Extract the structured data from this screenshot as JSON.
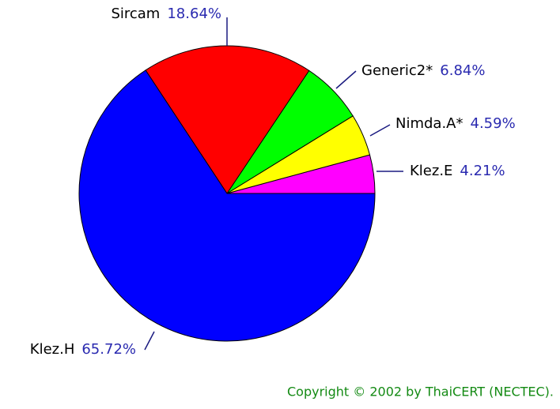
{
  "chart_data": {
    "type": "pie",
    "categories": [
      "Klez.E",
      "Nimda.A*",
      "Generic2*",
      "Sircam",
      "Klez.H"
    ],
    "values": [
      4.21,
      4.59,
      6.84,
      18.64,
      65.72
    ],
    "value_labels": [
      "4.21%",
      "4.59%",
      "6.84%",
      "18.64%",
      "65.72%"
    ],
    "colors": [
      "#ff00ff",
      "#ffff00",
      "#00ff00",
      "#ff0000",
      "#0000ff"
    ],
    "footer": "Copyright © 2002 by ThaiCERT (NECTEC)."
  }
}
